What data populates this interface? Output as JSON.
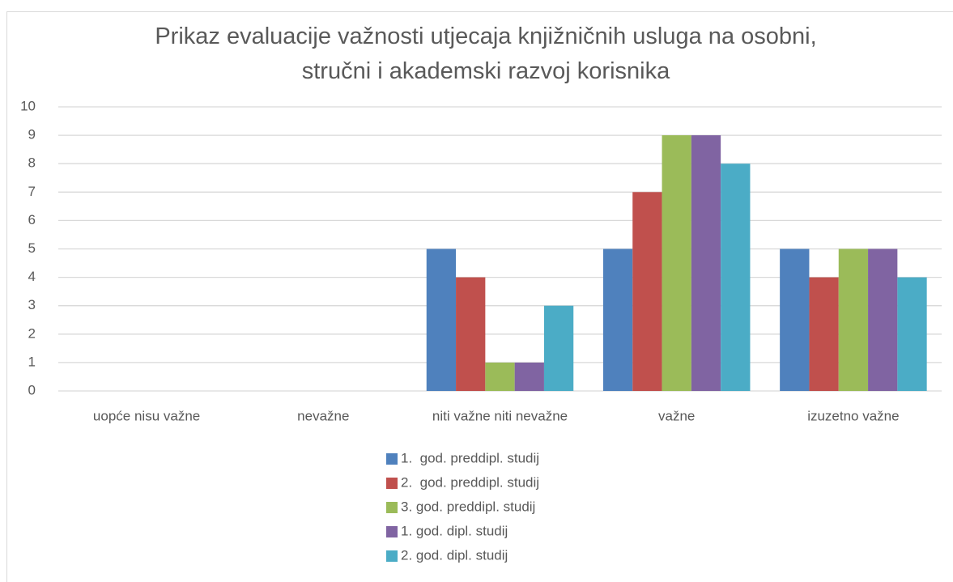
{
  "chart_data": {
    "type": "bar",
    "title": "Prikaz evaluacije važnosti utjecaja knjižničnih usluga na osobni, stručni i akademski razvoj korisnika",
    "categories": [
      "uopće nisu važne",
      "nevažne",
      "niti važne niti nevažne",
      "važne",
      "izuzetno važne"
    ],
    "series": [
      {
        "name": "1.  god. preddipl. studij",
        "color": "#4f81bd",
        "values": [
          0,
          0,
          5,
          5,
          5
        ]
      },
      {
        "name": "2.  god. preddipl. studij",
        "color": "#c0504d",
        "values": [
          0,
          0,
          4,
          7,
          4
        ]
      },
      {
        "name": "3. god. preddipl. studij",
        "color": "#9bbb59",
        "values": [
          0,
          0,
          1,
          9,
          5
        ]
      },
      {
        "name": "1. god. dipl. studij",
        "color": "#8064a2",
        "values": [
          0,
          0,
          1,
          9,
          5
        ]
      },
      {
        "name": "2. god. dipl. studij",
        "color": "#4bacc6",
        "values": [
          0,
          0,
          3,
          8,
          4
        ]
      }
    ],
    "ylim": [
      0,
      10
    ],
    "yticks": [
      0,
      1,
      2,
      3,
      4,
      5,
      6,
      7,
      8,
      9,
      10
    ],
    "grid": true,
    "legend": "bottom"
  }
}
